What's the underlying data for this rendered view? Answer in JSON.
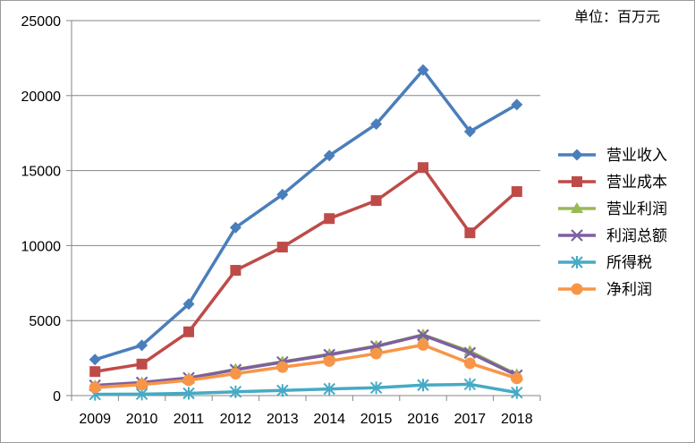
{
  "chart_data": {
    "type": "line",
    "title": "",
    "xlabel": "",
    "ylabel": "",
    "unit_label": "单位：百万元",
    "categories": [
      "2009",
      "2010",
      "2011",
      "2012",
      "2013",
      "2014",
      "2015",
      "2016",
      "2017",
      "2018"
    ],
    "ylim": [
      0,
      25000
    ],
    "yticks": [
      0,
      5000,
      10000,
      15000,
      20000,
      25000
    ],
    "grid": "horizontal",
    "legend_position": "right",
    "series": [
      {
        "name": "营业收入",
        "color": "#4a7ebb",
        "marker": "diamond",
        "values": [
          2400,
          3350,
          6100,
          11200,
          13400,
          16000,
          18100,
          21700,
          17600,
          19400
        ]
      },
      {
        "name": "营业成本",
        "color": "#be4b48",
        "marker": "square",
        "values": [
          1600,
          2100,
          4250,
          8350,
          9900,
          11800,
          13000,
          15200,
          10850,
          13600
        ]
      },
      {
        "name": "营业利润",
        "color": "#98b954",
        "marker": "triangle",
        "values": [
          650,
          850,
          1150,
          1750,
          2250,
          2750,
          3300,
          4050,
          2950,
          1400
        ]
      },
      {
        "name": "利润总额",
        "color": "#7d60a0",
        "marker": "x",
        "values": [
          680,
          870,
          1180,
          1720,
          2230,
          2720,
          3280,
          4030,
          2850,
          1350
        ]
      },
      {
        "name": "所得税",
        "color": "#46aac5",
        "marker": "star",
        "values": [
          80,
          100,
          150,
          250,
          340,
          440,
          520,
          700,
          750,
          200
        ]
      },
      {
        "name": "净利润",
        "color": "#f79646",
        "marker": "circle",
        "values": [
          540,
          730,
          1020,
          1460,
          1900,
          2300,
          2800,
          3380,
          2150,
          1150
        ]
      }
    ]
  }
}
